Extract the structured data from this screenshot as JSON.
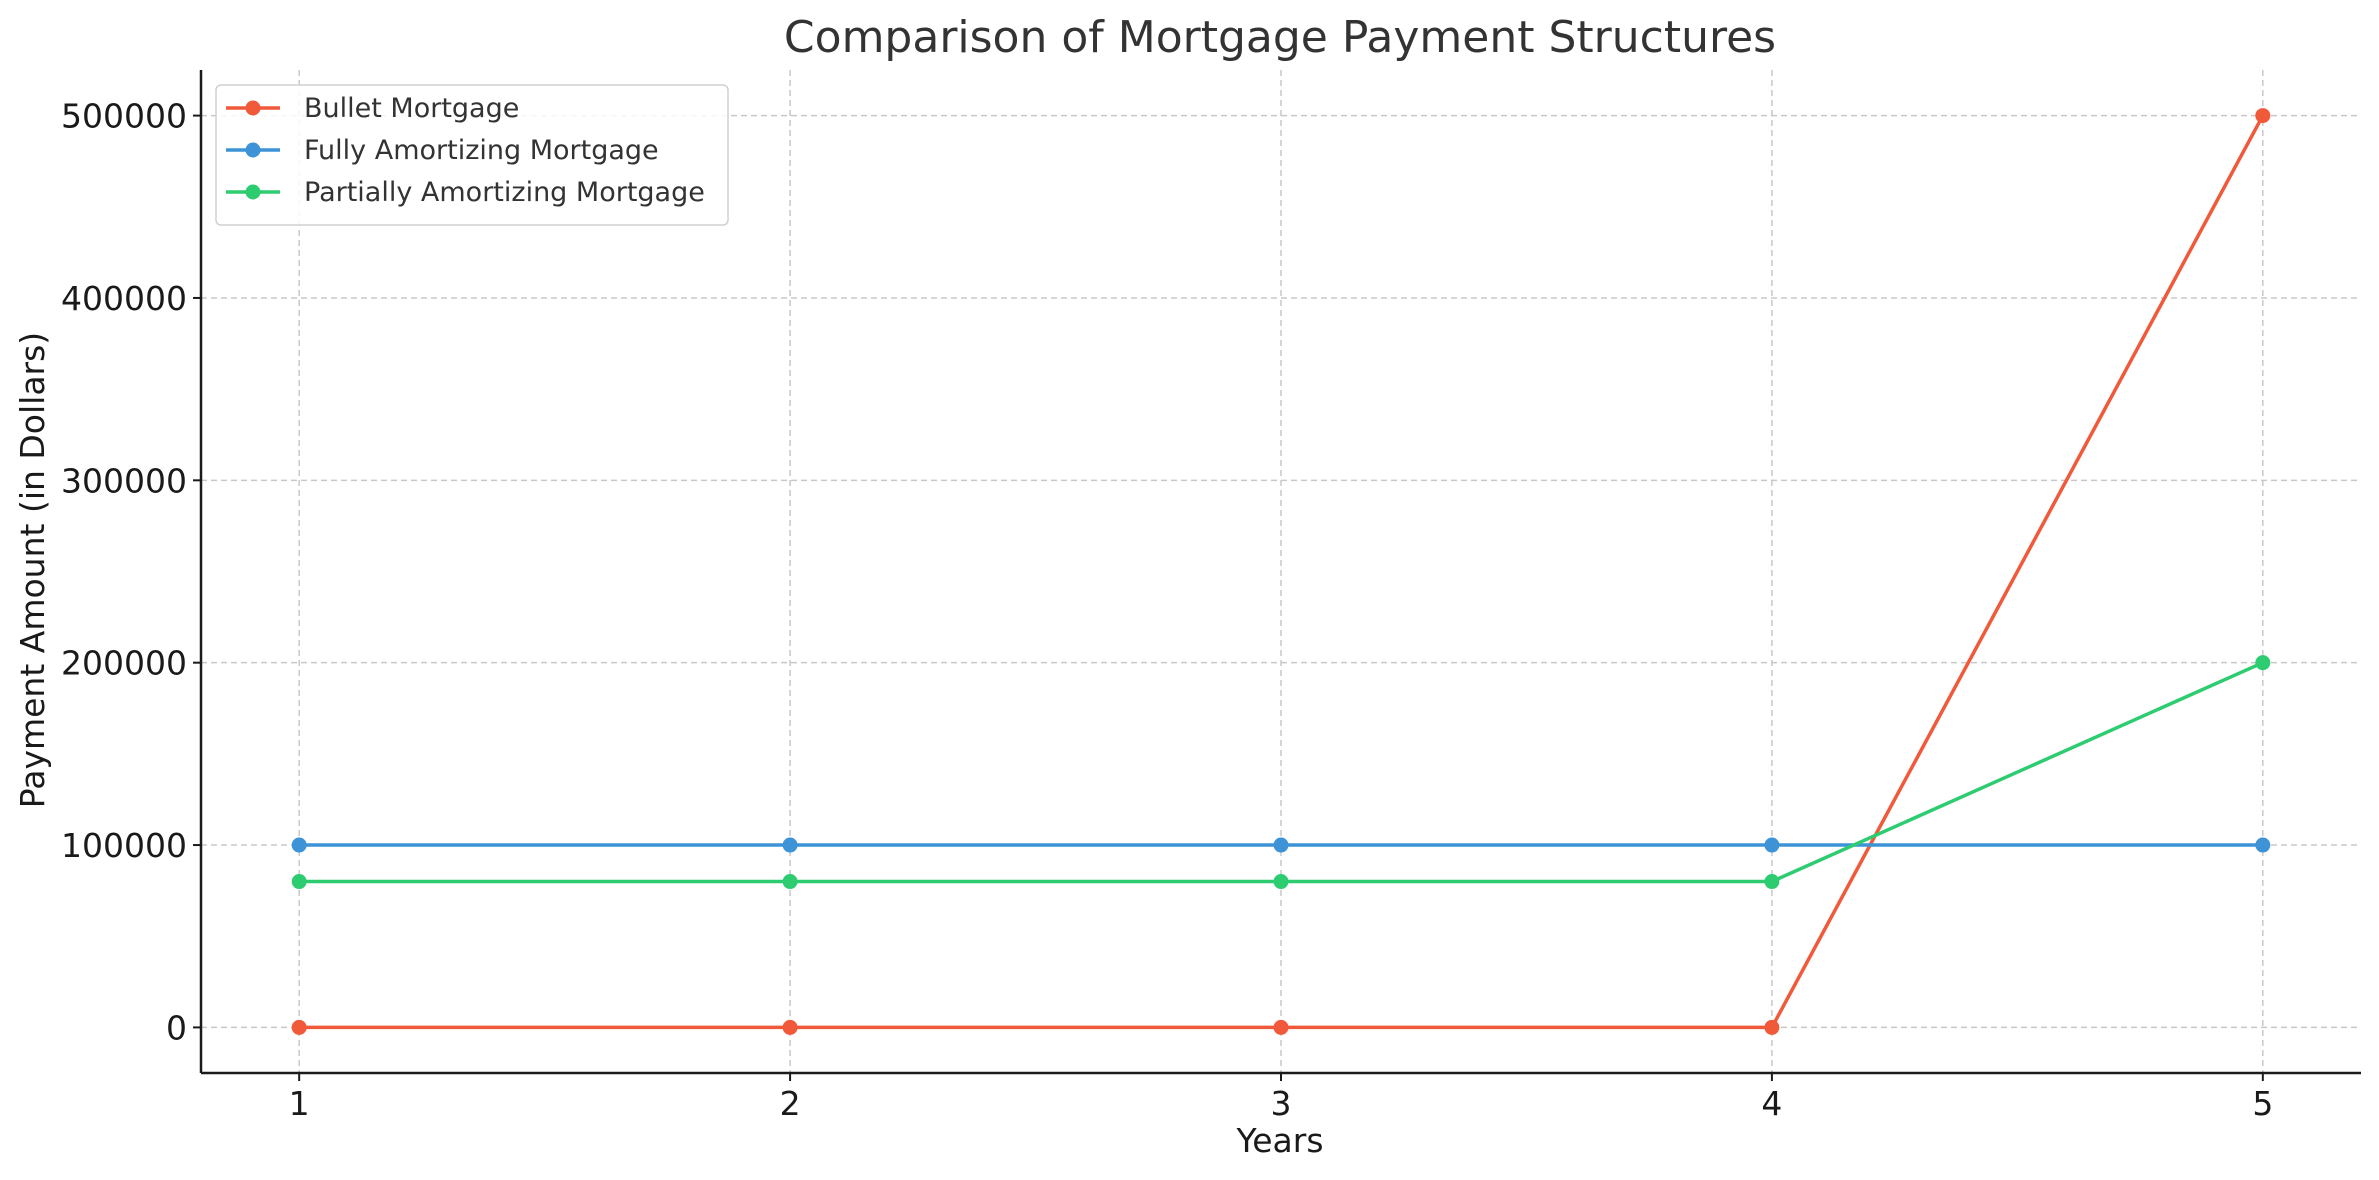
{
  "chart_data": {
    "type": "line",
    "title": "Comparison of Mortgage Payment Structures",
    "xlabel": "Years",
    "ylabel": "Payment Amount (in Dollars)",
    "x": [
      1,
      2,
      3,
      4,
      5
    ],
    "xlim": [
      0.8,
      5.2
    ],
    "ylim": [
      -25000,
      525000
    ],
    "xticks": [
      1,
      2,
      3,
      4,
      5
    ],
    "yticks": [
      0,
      100000,
      200000,
      300000,
      400000,
      500000
    ],
    "grid": true,
    "legend_position": "top-left",
    "series": [
      {
        "name": "Bullet Mortgage",
        "color": "#f05a3a",
        "values": [
          0,
          0,
          0,
          0,
          500000
        ]
      },
      {
        "name": "Fully Amortizing Mortgage",
        "color": "#3d93d6",
        "values": [
          100000,
          100000,
          100000,
          100000,
          100000
        ]
      },
      {
        "name": "Partially Amortizing Mortgage",
        "color": "#2ecc71",
        "values": [
          80000,
          80000,
          80000,
          80000,
          200000
        ]
      }
    ]
  }
}
